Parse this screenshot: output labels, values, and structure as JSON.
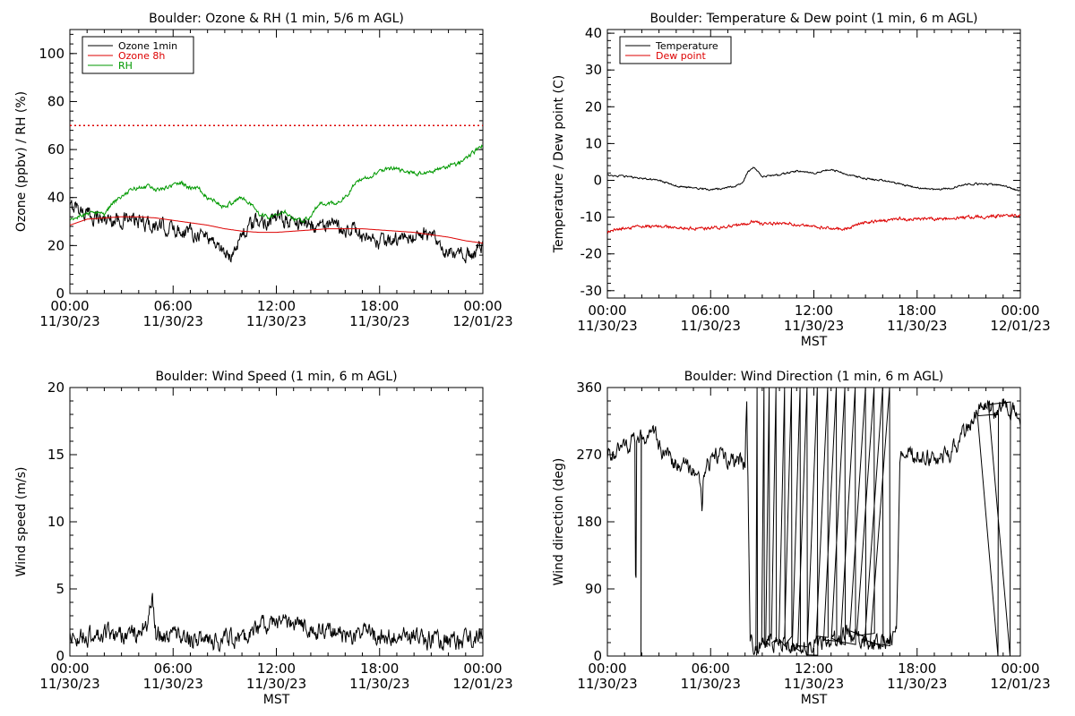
{
  "page": {
    "background": "#ffffff"
  },
  "chart_data": [
    {
      "id": "ozone-rh",
      "type": "line",
      "title": "Boulder: Ozone & RH (1 min, 5/6 m AGL)",
      "ylabel": "Ozone (ppbv) / RH (%)",
      "xlabel": "",
      "x_tick_labels": [
        [
          "00:00",
          "11/30/23"
        ],
        [
          "06:00",
          "11/30/23"
        ],
        [
          "12:00",
          "11/30/23"
        ],
        [
          "18:00",
          "11/30/23"
        ],
        [
          "00:00",
          "12/01/23"
        ]
      ],
      "x_range_hours": [
        0,
        24
      ],
      "ylim": [
        0,
        110
      ],
      "y_ticks": [
        0,
        20,
        40,
        60,
        80,
        100
      ],
      "legend": {
        "placement": "top-left",
        "entries": [
          {
            "label": "Ozone 1min",
            "color": "#000000"
          },
          {
            "label": "Ozone 8h",
            "color": "#dd0000"
          },
          {
            "label": "RH",
            "color": "#009900"
          }
        ]
      },
      "reference_line": {
        "y": 70,
        "color": "#dd0000",
        "style": "dotted"
      },
      "series": [
        {
          "name": "Ozone 1min",
          "color": "#000000",
          "noise": 2.6,
          "x": [
            0,
            0.3,
            1,
            2,
            3,
            4,
            5,
            6,
            7,
            8,
            8.5,
            9,
            9.3,
            9.6,
            10,
            10.5,
            11,
            12,
            13,
            14,
            15,
            16,
            16.5,
            17,
            18,
            19,
            20,
            20.5,
            21,
            21.5,
            22,
            23,
            24
          ],
          "y": [
            35,
            37,
            33,
            31,
            31,
            30,
            28,
            27,
            26,
            24,
            21,
            17,
            14,
            20,
            25,
            28,
            30,
            31,
            30,
            29,
            28,
            27,
            28,
            22,
            21,
            22,
            24,
            25,
            24,
            19,
            16,
            16,
            19
          ]
        },
        {
          "name": "Ozone 8h",
          "color": "#dd0000",
          "noise": 0,
          "x": [
            0,
            1,
            2,
            3,
            4,
            5,
            6,
            7,
            8,
            9,
            10,
            11,
            12,
            13,
            14,
            15,
            16,
            17,
            18,
            19,
            20,
            21,
            22,
            23,
            24
          ],
          "y": [
            28.5,
            31,
            31.5,
            32,
            32,
            31.5,
            30.5,
            29.5,
            28.5,
            27,
            26,
            25.5,
            25.5,
            26,
            26.5,
            27,
            27,
            27,
            26.5,
            26,
            25.5,
            24.5,
            23.5,
            22,
            21
          ]
        },
        {
          "name": "RH",
          "color": "#009900",
          "noise": 0.7,
          "x": [
            0,
            0.5,
            1,
            1.5,
            2,
            2.5,
            3,
            3.5,
            4,
            4.5,
            5,
            5.5,
            6,
            6.5,
            7,
            7.5,
            8,
            8.5,
            9,
            9.5,
            10,
            10.5,
            11,
            11.5,
            12,
            12.5,
            13,
            13.5,
            14,
            14.5,
            15,
            15.5,
            16,
            16.5,
            17,
            17.5,
            18,
            18.5,
            19,
            19.5,
            20,
            20.5,
            21,
            21.5,
            22,
            22.5,
            23,
            23.5,
            24
          ],
          "y": [
            30,
            32,
            33,
            34,
            33,
            38,
            40,
            43,
            44,
            45,
            43,
            44,
            45,
            46,
            44,
            44,
            40,
            38,
            36,
            38,
            40,
            37,
            33,
            32,
            33,
            34,
            31,
            30,
            32,
            38,
            37,
            38,
            40,
            45,
            48,
            49,
            51,
            52,
            52,
            51,
            50,
            50,
            51,
            52,
            53,
            54,
            56,
            59,
            62
          ]
        }
      ]
    },
    {
      "id": "temp-dew",
      "type": "line",
      "title": "Boulder: Temperature & Dew point (1 min, 6 m AGL)",
      "ylabel": "Temperature / Dew point (C)",
      "xlabel": "MST",
      "x_tick_labels": [
        [
          "00:00",
          "11/30/23"
        ],
        [
          "06:00",
          "11/30/23"
        ],
        [
          "12:00",
          "11/30/23"
        ],
        [
          "18:00",
          "11/30/23"
        ],
        [
          "00:00",
          "12/01/23"
        ]
      ],
      "x_range_hours": [
        0,
        24
      ],
      "ylim": [
        -32,
        41
      ],
      "y_ticks": [
        -30,
        -20,
        -10,
        0,
        10,
        20,
        30,
        40
      ],
      "legend": {
        "placement": "top-left",
        "entries": [
          {
            "label": "Temperature",
            "color": "#000000"
          },
          {
            "label": "Dew point",
            "color": "#dd0000"
          }
        ]
      },
      "series": [
        {
          "name": "Temperature",
          "color": "#000000",
          "noise": 0.2,
          "x": [
            0,
            1,
            2,
            3,
            4,
            5,
            6,
            7,
            7.8,
            8.2,
            8.5,
            8.8,
            9,
            10,
            11,
            12,
            12.5,
            13,
            14,
            15,
            16,
            17,
            18,
            19,
            20,
            21,
            22,
            23,
            24
          ],
          "y": [
            1.5,
            1,
            0.5,
            0,
            -1.5,
            -2,
            -2.5,
            -2,
            -1,
            2.5,
            3.5,
            2,
            1,
            1.5,
            2.5,
            2,
            2.5,
            3,
            1.5,
            0.5,
            0,
            -1,
            -2,
            -2.5,
            -2,
            -1,
            -1,
            -1.5,
            -3
          ]
        },
        {
          "name": "Dew point",
          "color": "#dd0000",
          "noise": 0.35,
          "x": [
            0,
            1,
            2,
            3,
            4,
            5,
            6,
            7,
            8,
            8.5,
            9,
            10,
            11,
            12,
            13,
            14,
            15,
            16,
            17,
            18,
            19,
            20,
            21,
            22,
            23,
            24
          ],
          "y": [
            -14,
            -13,
            -12.5,
            -12.5,
            -13,
            -13,
            -13,
            -12.5,
            -12,
            -11,
            -12,
            -11.5,
            -12,
            -12.5,
            -13,
            -13,
            -11.5,
            -11,
            -10.5,
            -10.5,
            -10.5,
            -10.5,
            -10,
            -10,
            -9.5,
            -9.5
          ]
        }
      ]
    },
    {
      "id": "wind-speed",
      "type": "line",
      "title": "Boulder: Wind Speed (1 min, 6 m AGL)",
      "ylabel": "Wind speed (m/s)",
      "xlabel": "MST",
      "x_tick_labels": [
        [
          "00:00",
          "11/30/23"
        ],
        [
          "06:00",
          "11/30/23"
        ],
        [
          "12:00",
          "11/30/23"
        ],
        [
          "18:00",
          "11/30/23"
        ],
        [
          "00:00",
          "12/01/23"
        ]
      ],
      "x_range_hours": [
        0,
        24
      ],
      "ylim": [
        0,
        20
      ],
      "y_ticks": [
        0,
        5,
        10,
        15,
        20
      ],
      "series": [
        {
          "name": "",
          "color": "#000000",
          "noise": 0.55,
          "clamp_min": 0,
          "x": [
            0,
            1,
            2,
            3,
            4,
            4.5,
            4.8,
            5,
            6,
            7,
            8,
            9,
            10,
            11,
            11.5,
            12,
            13,
            14,
            15,
            16,
            17,
            18,
            19,
            20,
            21,
            22,
            23,
            24
          ],
          "y": [
            1.5,
            1.5,
            1.7,
            1.5,
            1.8,
            2.5,
            4.5,
            1.5,
            1.6,
            1.4,
            1,
            1.2,
            1.3,
            2,
            2.5,
            2.6,
            2.3,
            2,
            1.8,
            1.5,
            1.6,
            1.5,
            1.5,
            1.4,
            1.2,
            1.1,
            1.2,
            1.5
          ]
        }
      ]
    },
    {
      "id": "wind-dir",
      "type": "line",
      "title": "Boulder: Wind Direction (1 min, 6 m AGL)",
      "ylabel": "Wind direction (deg)",
      "xlabel": "MST",
      "x_tick_labels": [
        [
          "00:00",
          "11/30/23"
        ],
        [
          "06:00",
          "11/30/23"
        ],
        [
          "12:00",
          "11/30/23"
        ],
        [
          "18:00",
          "11/30/23"
        ],
        [
          "00:00",
          "12/01/23"
        ]
      ],
      "x_range_hours": [
        0,
        24
      ],
      "ylim": [
        0,
        360
      ],
      "y_ticks": [
        0,
        90,
        180,
        270,
        360
      ],
      "series": [
        {
          "name": "",
          "color": "#000000",
          "noise": 9,
          "clamp_min": 0,
          "clamp_max": 360,
          "x": [
            0,
            0.7,
            1,
            1.3,
            1.6,
            1.65,
            1.7,
            1.9,
            2,
            2.8,
            3,
            4,
            5,
            5.3,
            5.5,
            5.6,
            6,
            6.5,
            7,
            7.5,
            8,
            8.1,
            8.3,
            8.5,
            9,
            10,
            11,
            12,
            13,
            14,
            15,
            16,
            16.8,
            17,
            18,
            19,
            20,
            20.5,
            21,
            21.5,
            22,
            22.5,
            23,
            23.5,
            24
          ],
          "y": [
            270,
            275,
            280,
            285,
            290,
            20,
            285,
            290,
            295,
            300,
            280,
            260,
            250,
            240,
            200,
            250,
            260,
            270,
            265,
            260,
            260,
            350,
            20,
            10,
            15,
            20,
            10,
            15,
            20,
            30,
            15,
            20,
            30,
            270,
            270,
            265,
            270,
            290,
            310,
            330,
            340,
            320,
            340,
            330,
            320
          ],
          "spikes": [
            {
              "x": 1.95,
              "y": 0
            },
            {
              "x": 8.7,
              "y": 360
            },
            {
              "x": 9.1,
              "y": 360
            },
            {
              "x": 9.4,
              "y": 360
            },
            {
              "x": 9.8,
              "y": 360
            },
            {
              "x": 10.3,
              "y": 360
            },
            {
              "x": 10.7,
              "y": 360
            },
            {
              "x": 11.2,
              "y": 360
            },
            {
              "x": 11.6,
              "y": 360
            },
            {
              "x": 12.2,
              "y": 360
            },
            {
              "x": 12.8,
              "y": 360
            },
            {
              "x": 13.3,
              "y": 360
            },
            {
              "x": 13.8,
              "y": 360
            },
            {
              "x": 14.4,
              "y": 360
            },
            {
              "x": 15.0,
              "y": 360
            },
            {
              "x": 15.5,
              "y": 360
            },
            {
              "x": 16.0,
              "y": 360
            },
            {
              "x": 16.4,
              "y": 360
            },
            {
              "x": 22.7,
              "y": 0
            },
            {
              "x": 23.4,
              "y": 0
            }
          ]
        }
      ]
    }
  ]
}
